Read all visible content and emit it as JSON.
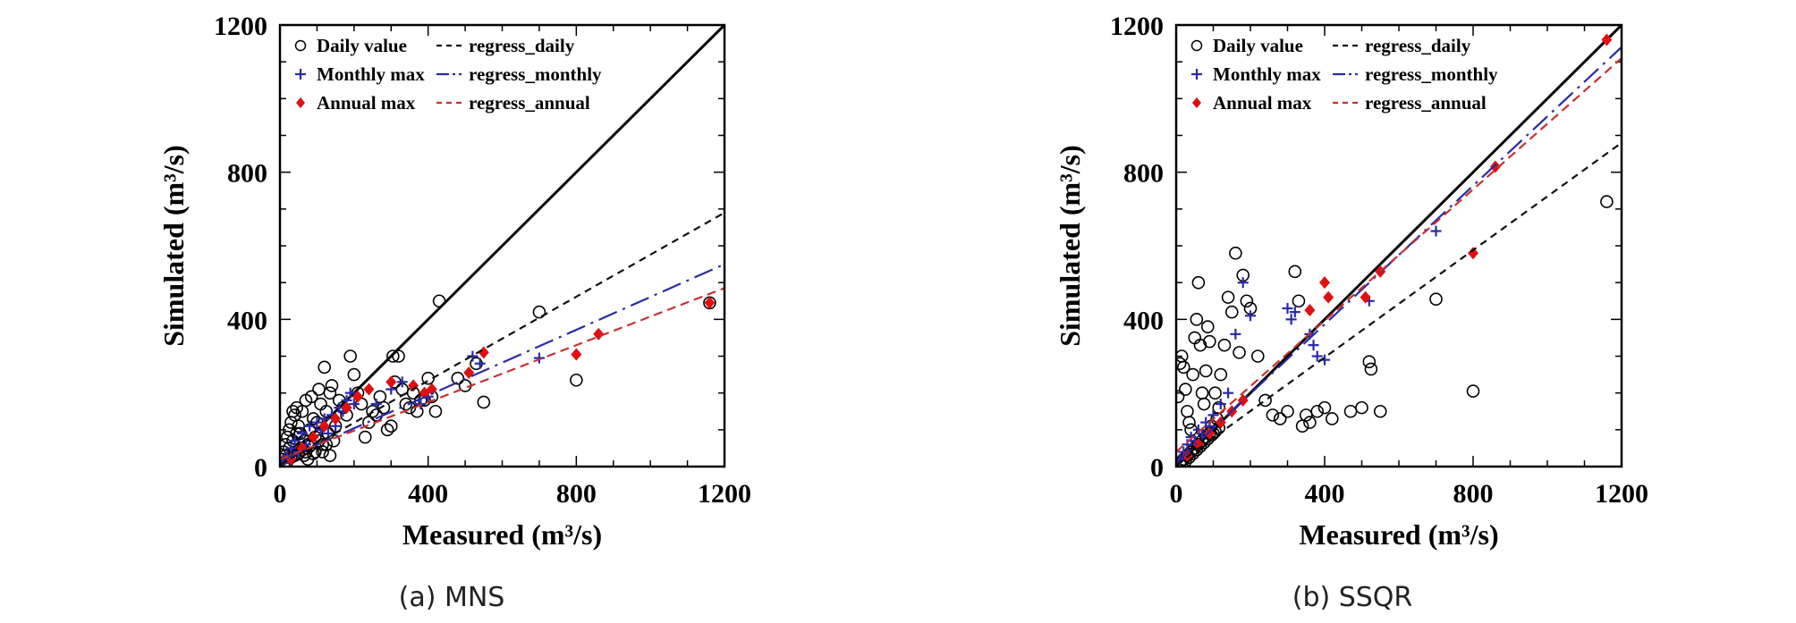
{
  "chart_data": [
    {
      "type": "scatter",
      "caption": "(a) MNS",
      "xlabel": "Measured (m³/s)",
      "ylabel": "Simulated (m³/s)",
      "xlim": [
        0,
        1200
      ],
      "ylim": [
        0,
        1200
      ],
      "xticks": [
        "0",
        "400",
        "800",
        "1200"
      ],
      "yticks": [
        "0",
        "400",
        "800",
        "1200"
      ],
      "legend_position": "top-left",
      "legend": {
        "daily": "Daily value",
        "monthly": "Monthly max",
        "annual": "Annual max",
        "reg_daily": "regress_daily",
        "reg_monthly": "regress_monthly",
        "reg_annual": "regress_annual"
      },
      "colors": {
        "daily": "#000000",
        "monthly": "#2a2aa8",
        "annual": "#e01010",
        "reg_daily": "#111111",
        "reg_monthly": "#2a2aa8",
        "reg_annual": "#c83030"
      },
      "regressions": {
        "daily": [
          [
            0,
            5
          ],
          [
            1200,
            690
          ]
        ],
        "monthly": [
          [
            0,
            15
          ],
          [
            1200,
            550
          ]
        ],
        "annual": [
          [
            0,
            20
          ],
          [
            1200,
            485
          ]
        ]
      },
      "series": {
        "daily": [
          [
            5,
            20
          ],
          [
            10,
            40
          ],
          [
            15,
            60
          ],
          [
            20,
            80
          ],
          [
            25,
            100
          ],
          [
            30,
            120
          ],
          [
            35,
            150
          ],
          [
            40,
            140
          ],
          [
            45,
            160
          ],
          [
            50,
            110
          ],
          [
            55,
            90
          ],
          [
            60,
            150
          ],
          [
            65,
            70
          ],
          [
            70,
            180
          ],
          [
            75,
            60
          ],
          [
            80,
            100
          ],
          [
            85,
            190
          ],
          [
            90,
            130
          ],
          [
            95,
            80
          ],
          [
            100,
            120
          ],
          [
            105,
            210
          ],
          [
            110,
            170
          ],
          [
            115,
            60
          ],
          [
            120,
            270
          ],
          [
            125,
            150
          ],
          [
            130,
            90
          ],
          [
            135,
            200
          ],
          [
            140,
            220
          ],
          [
            150,
            110
          ],
          [
            160,
            180
          ],
          [
            170,
            160
          ],
          [
            180,
            140
          ],
          [
            190,
            300
          ],
          [
            200,
            250
          ],
          [
            210,
            200
          ],
          [
            220,
            170
          ],
          [
            230,
            80
          ],
          [
            240,
            120
          ],
          [
            250,
            150
          ],
          [
            260,
            140
          ],
          [
            270,
            190
          ],
          [
            280,
            160
          ],
          [
            290,
            100
          ],
          [
            300,
            110
          ],
          [
            305,
            300
          ],
          [
            310,
            230
          ],
          [
            320,
            300
          ],
          [
            330,
            210
          ],
          [
            340,
            170
          ],
          [
            350,
            160
          ],
          [
            360,
            200
          ],
          [
            370,
            150
          ],
          [
            380,
            180
          ],
          [
            390,
            180
          ],
          [
            400,
            240
          ],
          [
            410,
            190
          ],
          [
            420,
            150
          ],
          [
            430,
            450
          ],
          [
            480,
            240
          ],
          [
            500,
            220
          ],
          [
            530,
            280
          ],
          [
            550,
            175
          ],
          [
            700,
            420
          ],
          [
            800,
            235
          ],
          [
            1160,
            445
          ],
          [
            10,
            5
          ],
          [
            20,
            15
          ],
          [
            30,
            25
          ],
          [
            40,
            30
          ],
          [
            50,
            35
          ],
          [
            60,
            45
          ],
          [
            70,
            40
          ],
          [
            80,
            55
          ],
          [
            90,
            35
          ],
          [
            15,
            30
          ],
          [
            25,
            50
          ],
          [
            35,
            70
          ],
          [
            45,
            90
          ],
          [
            55,
            50
          ],
          [
            65,
            30
          ],
          [
            75,
            20
          ],
          [
            85,
            60
          ],
          [
            95,
            40
          ],
          [
            105,
            70
          ],
          [
            115,
            40
          ],
          [
            125,
            60
          ],
          [
            135,
            30
          ],
          [
            145,
            70
          ]
        ],
        "monthly": [
          [
            10,
            10
          ],
          [
            20,
            30
          ],
          [
            30,
            50
          ],
          [
            40,
            70
          ],
          [
            50,
            40
          ],
          [
            60,
            90
          ],
          [
            70,
            60
          ],
          [
            80,
            110
          ],
          [
            90,
            80
          ],
          [
            100,
            120
          ],
          [
            110,
            100
          ],
          [
            120,
            130
          ],
          [
            130,
            90
          ],
          [
            140,
            140
          ],
          [
            150,
            110
          ],
          [
            160,
            160
          ],
          [
            170,
            150
          ],
          [
            180,
            180
          ],
          [
            190,
            200
          ],
          [
            200,
            170
          ],
          [
            260,
            170
          ],
          [
            300,
            210
          ],
          [
            330,
            230
          ],
          [
            380,
            170
          ],
          [
            400,
            190
          ],
          [
            520,
            300
          ],
          [
            540,
            280
          ],
          [
            700,
            295
          ]
        ],
        "annual": [
          [
            30,
            20
          ],
          [
            60,
            50
          ],
          [
            90,
            80
          ],
          [
            120,
            110
          ],
          [
            150,
            130
          ],
          [
            180,
            160
          ],
          [
            210,
            190
          ],
          [
            240,
            210
          ],
          [
            300,
            230
          ],
          [
            360,
            220
          ],
          [
            390,
            200
          ],
          [
            410,
            210
          ],
          [
            510,
            255
          ],
          [
            550,
            310
          ],
          [
            800,
            305
          ],
          [
            860,
            360
          ],
          [
            1160,
            445
          ]
        ]
      }
    },
    {
      "type": "scatter",
      "caption": "(b) SSQR",
      "xlabel": "Measured (m³/s)",
      "ylabel": "Simulated (m³/s)",
      "xlim": [
        0,
        1200
      ],
      "ylim": [
        0,
        1200
      ],
      "xticks": [
        "0",
        "400",
        "800",
        "1200"
      ],
      "yticks": [
        "0",
        "400",
        "800",
        "1200"
      ],
      "legend_position": "top-left",
      "legend": {
        "daily": "Daily value",
        "monthly": "Monthly max",
        "annual": "Annual max",
        "reg_daily": "regress_daily",
        "reg_monthly": "regress_monthly",
        "reg_annual": "regress_annual"
      },
      "colors": {
        "daily": "#000000",
        "monthly": "#2a2aa8",
        "annual": "#e01010",
        "reg_daily": "#111111",
        "reg_monthly": "#2a2aa8",
        "reg_annual": "#c83030"
      },
      "regressions": {
        "daily": [
          [
            0,
            5
          ],
          [
            1200,
            880
          ]
        ],
        "monthly": [
          [
            0,
            10
          ],
          [
            1200,
            1140
          ]
        ],
        "annual": [
          [
            0,
            40
          ],
          [
            1200,
            1110
          ]
        ]
      },
      "series": {
        "daily": [
          [
            5,
            190
          ],
          [
            10,
            280
          ],
          [
            15,
            300
          ],
          [
            20,
            270
          ],
          [
            25,
            210
          ],
          [
            30,
            150
          ],
          [
            35,
            120
          ],
          [
            40,
            100
          ],
          [
            45,
            250
          ],
          [
            50,
            350
          ],
          [
            55,
            400
          ],
          [
            60,
            500
          ],
          [
            65,
            330
          ],
          [
            70,
            200
          ],
          [
            75,
            170
          ],
          [
            80,
            260
          ],
          [
            85,
            380
          ],
          [
            90,
            340
          ],
          [
            95,
            110
          ],
          [
            100,
            90
          ],
          [
            105,
            200
          ],
          [
            110,
            130
          ],
          [
            115,
            160
          ],
          [
            120,
            250
          ],
          [
            130,
            330
          ],
          [
            140,
            460
          ],
          [
            150,
            420
          ],
          [
            160,
            580
          ],
          [
            170,
            310
          ],
          [
            180,
            520
          ],
          [
            190,
            450
          ],
          [
            200,
            430
          ],
          [
            220,
            300
          ],
          [
            240,
            180
          ],
          [
            260,
            140
          ],
          [
            280,
            130
          ],
          [
            300,
            150
          ],
          [
            320,
            530
          ],
          [
            330,
            450
          ],
          [
            340,
            110
          ],
          [
            350,
            140
          ],
          [
            360,
            120
          ],
          [
            380,
            150
          ],
          [
            400,
            160
          ],
          [
            420,
            130
          ],
          [
            470,
            150
          ],
          [
            500,
            160
          ],
          [
            520,
            285
          ],
          [
            525,
            265
          ],
          [
            550,
            150
          ],
          [
            700,
            455
          ],
          [
            800,
            205
          ],
          [
            1160,
            720
          ],
          [
            10,
            10
          ],
          [
            20,
            20
          ],
          [
            30,
            30
          ],
          [
            40,
            40
          ],
          [
            50,
            50
          ],
          [
            60,
            60
          ],
          [
            70,
            70
          ],
          [
            80,
            80
          ],
          [
            90,
            90
          ],
          [
            15,
            5
          ],
          [
            25,
            15
          ],
          [
            35,
            25
          ],
          [
            45,
            35
          ],
          [
            55,
            45
          ],
          [
            65,
            55
          ],
          [
            75,
            65
          ],
          [
            85,
            75
          ],
          [
            95,
            85
          ],
          [
            105,
            95
          ],
          [
            115,
            105
          ]
        ],
        "monthly": [
          [
            10,
            20
          ],
          [
            20,
            40
          ],
          [
            30,
            60
          ],
          [
            40,
            80
          ],
          [
            50,
            70
          ],
          [
            60,
            100
          ],
          [
            70,
            90
          ],
          [
            80,
            120
          ],
          [
            90,
            110
          ],
          [
            100,
            140
          ],
          [
            120,
            170
          ],
          [
            140,
            200
          ],
          [
            160,
            360
          ],
          [
            180,
            500
          ],
          [
            200,
            410
          ],
          [
            300,
            430
          ],
          [
            310,
            400
          ],
          [
            320,
            420
          ],
          [
            360,
            360
          ],
          [
            370,
            330
          ],
          [
            380,
            300
          ],
          [
            400,
            290
          ],
          [
            520,
            450
          ],
          [
            700,
            640
          ]
        ],
        "annual": [
          [
            30,
            30
          ],
          [
            60,
            60
          ],
          [
            90,
            90
          ],
          [
            120,
            120
          ],
          [
            150,
            150
          ],
          [
            180,
            180
          ],
          [
            360,
            425
          ],
          [
            400,
            500
          ],
          [
            410,
            460
          ],
          [
            510,
            460
          ],
          [
            550,
            530
          ],
          [
            800,
            580
          ],
          [
            860,
            815
          ],
          [
            1160,
            1160
          ]
        ]
      }
    }
  ]
}
